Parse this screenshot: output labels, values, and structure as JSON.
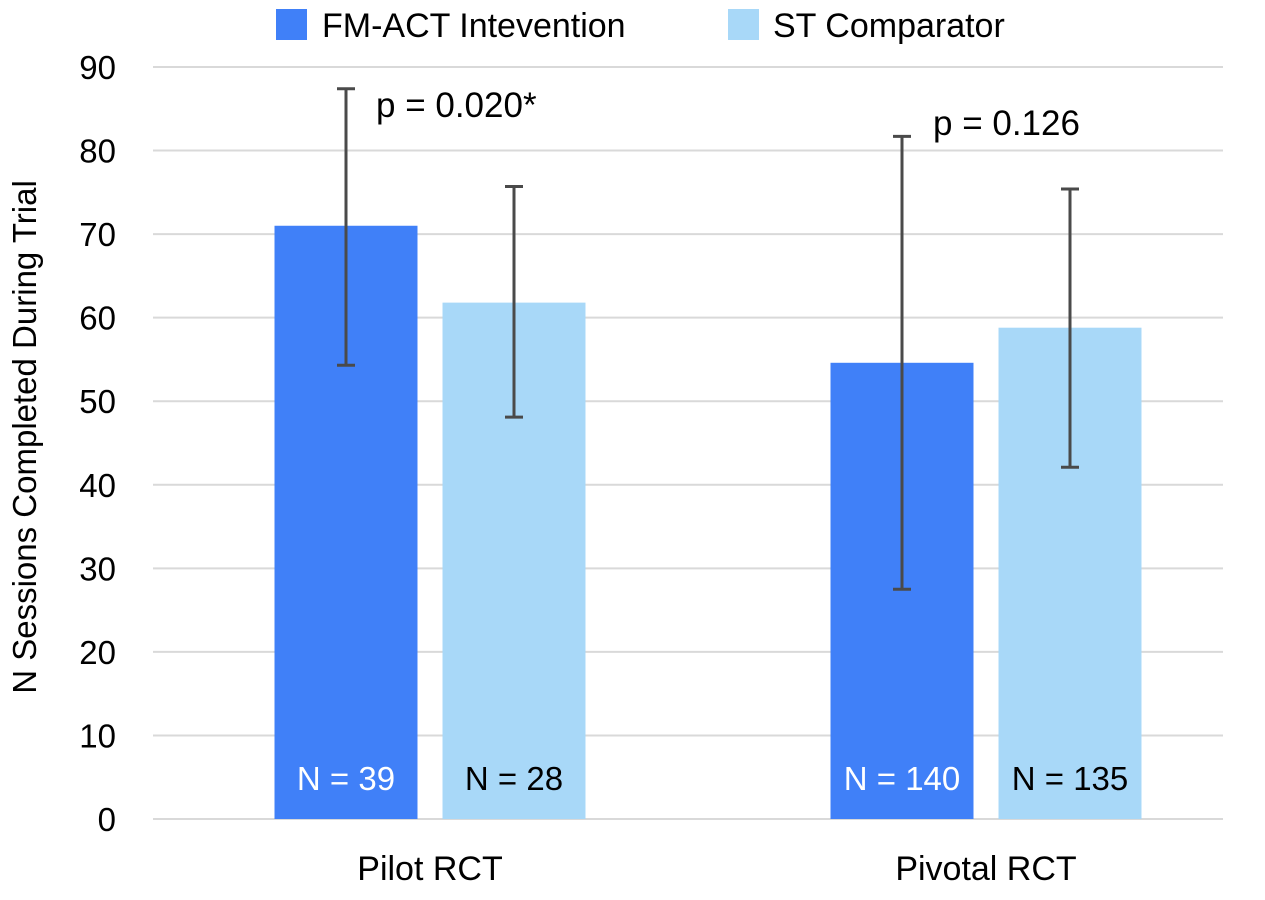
{
  "chart_data": {
    "type": "bar",
    "categories": [
      "Pilot RCT",
      "Pivotal RCT"
    ],
    "series": [
      {
        "name": "FM-ACT Intevention",
        "values": [
          71,
          54.6
        ],
        "error_low": [
          54.3,
          27.5
        ],
        "error_high": [
          87.4,
          81.7
        ],
        "n_labels": [
          "N = 39",
          "N = 140"
        ]
      },
      {
        "name": "ST Comparator",
        "values": [
          61.8,
          58.8
        ],
        "error_low": [
          48.1,
          42.1
        ],
        "error_high": [
          75.7,
          75.4
        ],
        "n_labels": [
          "N = 28",
          "N = 135"
        ]
      }
    ],
    "annotations": [
      "p = 0.020*",
      "p = 0.126"
    ],
    "ylabel": "N Sessions Completed During Trial",
    "xlabel": "",
    "ylim": [
      0,
      90
    ],
    "yticks": [
      0,
      10,
      20,
      30,
      40,
      50,
      60,
      70,
      80,
      90
    ],
    "grid": true,
    "legend_position": "top",
    "colors": {
      "series": [
        "#4080f8",
        "#a8d8f8"
      ],
      "n_label_text": [
        "#ffffff",
        "#000000"
      ],
      "error_bar": "#4a4a4a",
      "grid": "#d9d9d9"
    }
  }
}
